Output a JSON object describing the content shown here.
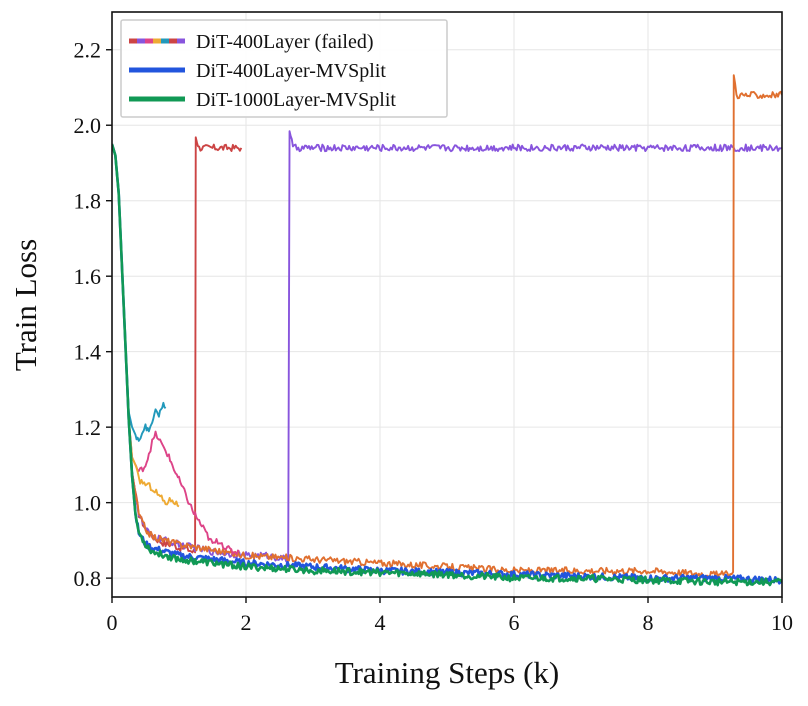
{
  "chart_data": {
    "type": "line",
    "title": "",
    "xlabel": "Training Steps (k)",
    "ylabel": "Train Loss",
    "xlim": [
      0,
      10
    ],
    "ylim": [
      0.75,
      2.3
    ],
    "xticks": [
      0,
      2,
      4,
      6,
      8,
      10
    ],
    "xtick_labels": [
      "0",
      "2",
      "4",
      "6",
      "8",
      "10"
    ],
    "yticks": [
      0.8,
      1.0,
      1.2,
      1.4,
      1.6,
      1.8,
      2.0,
      2.2
    ],
    "ytick_labels": [
      "0.8",
      "1.0",
      "1.2",
      "1.4",
      "1.6",
      "1.8",
      "2.0",
      "2.2"
    ],
    "grid": true,
    "legend_position": "top-left",
    "legend": [
      {
        "label": "DiT-400Layer (failed)",
        "colors": [
          "#cc4444",
          "#8855dd",
          "#dd4488",
          "#eeaa33",
          "#2299bb"
        ],
        "style": "multicolor-dashed"
      },
      {
        "label": "DiT-400Layer-MVSplit",
        "colors": [
          "#2255dd"
        ],
        "style": "solid"
      },
      {
        "label": "DiT-1000Layer-MVSplit",
        "colors": [
          "#119955"
        ],
        "style": "solid"
      }
    ],
    "series": [
      {
        "color": "#cc4444",
        "x": [
          0,
          0.05,
          0.1,
          0.15,
          0.2,
          0.25,
          0.3,
          0.4,
          0.5,
          0.6,
          0.7,
          0.8,
          0.9,
          1.0,
          1.1,
          1.2,
          1.24,
          1.25,
          1.3,
          1.5,
          1.7,
          1.93
        ],
        "y": [
          1.95,
          1.92,
          1.82,
          1.62,
          1.42,
          1.22,
          1.08,
          0.97,
          0.93,
          0.91,
          0.9,
          0.89,
          0.89,
          0.88,
          0.88,
          0.87,
          0.87,
          1.97,
          1.94,
          1.94,
          1.94,
          1.94
        ]
      },
      {
        "color": "#8855dd",
        "x": [
          0,
          0.05,
          0.1,
          0.15,
          0.2,
          0.25,
          0.3,
          0.4,
          0.5,
          0.6,
          0.8,
          1.0,
          1.5,
          2.0,
          2.3,
          2.6,
          2.63,
          2.65,
          2.7,
          4.0,
          6.0,
          8.0,
          10.0
        ],
        "y": [
          1.95,
          1.92,
          1.82,
          1.62,
          1.42,
          1.22,
          1.08,
          0.97,
          0.93,
          0.91,
          0.9,
          0.89,
          0.87,
          0.86,
          0.86,
          0.85,
          0.85,
          1.99,
          1.94,
          1.94,
          1.94,
          1.94,
          1.94
        ]
      },
      {
        "color": "#e07030",
        "x": [
          0,
          0.05,
          0.1,
          0.15,
          0.2,
          0.25,
          0.3,
          0.4,
          0.5,
          0.6,
          0.8,
          1.0,
          2.0,
          3.0,
          4.0,
          5.0,
          6.0,
          7.0,
          8.0,
          9.0,
          9.27,
          9.28,
          9.32,
          9.5,
          10.0
        ],
        "y": [
          1.95,
          1.92,
          1.82,
          1.62,
          1.42,
          1.22,
          1.08,
          0.97,
          0.93,
          0.91,
          0.9,
          0.89,
          0.86,
          0.85,
          0.84,
          0.83,
          0.82,
          0.82,
          0.82,
          0.81,
          0.81,
          2.14,
          2.08,
          2.08,
          2.08
        ]
      },
      {
        "color": "#dd4488",
        "x": [
          0,
          0.05,
          0.1,
          0.15,
          0.2,
          0.25,
          0.3,
          0.4,
          0.5,
          0.55,
          0.6,
          0.65,
          0.7,
          0.75,
          0.8,
          0.85,
          0.9,
          0.95,
          1.0,
          1.1,
          1.2,
          1.3,
          1.4,
          1.5,
          1.6,
          1.7,
          1.8,
          1.9
        ],
        "y": [
          1.95,
          1.92,
          1.82,
          1.62,
          1.42,
          1.22,
          1.12,
          1.08,
          1.1,
          1.13,
          1.16,
          1.18,
          1.17,
          1.15,
          1.14,
          1.12,
          1.1,
          1.08,
          1.06,
          1.02,
          0.98,
          0.95,
          0.92,
          0.89,
          0.9,
          0.88,
          0.87,
          0.87
        ]
      },
      {
        "color": "#eeaa33",
        "x": [
          0,
          0.05,
          0.1,
          0.15,
          0.2,
          0.25,
          0.3,
          0.35,
          0.4,
          0.5,
          0.6,
          0.7,
          0.8,
          0.9,
          1.0
        ],
        "y": [
          1.95,
          1.92,
          1.82,
          1.62,
          1.42,
          1.22,
          1.12,
          1.1,
          1.06,
          1.05,
          1.04,
          1.02,
          1.0,
          1.01,
          0.99
        ]
      },
      {
        "color": "#2299bb",
        "x": [
          0,
          0.05,
          0.1,
          0.15,
          0.2,
          0.25,
          0.3,
          0.35,
          0.4,
          0.45,
          0.5,
          0.55,
          0.6,
          0.65,
          0.7,
          0.75,
          0.8
        ],
        "y": [
          1.95,
          1.92,
          1.82,
          1.62,
          1.42,
          1.24,
          1.2,
          1.18,
          1.17,
          1.18,
          1.2,
          1.19,
          1.22,
          1.24,
          1.23,
          1.26,
          1.25
        ]
      },
      {
        "name": "DiT-400Layer-MVSplit",
        "color": "#2255dd",
        "x": [
          0,
          0.05,
          0.1,
          0.15,
          0.2,
          0.25,
          0.3,
          0.35,
          0.4,
          0.5,
          0.6,
          0.8,
          1.0,
          1.5,
          2.0,
          3.0,
          4.0,
          5.0,
          6.0,
          7.0,
          8.0,
          9.0,
          10.0
        ],
        "y": [
          1.95,
          1.92,
          1.82,
          1.62,
          1.42,
          1.22,
          1.07,
          0.97,
          0.92,
          0.89,
          0.88,
          0.87,
          0.86,
          0.85,
          0.84,
          0.83,
          0.82,
          0.815,
          0.81,
          0.805,
          0.8,
          0.8,
          0.795
        ]
      },
      {
        "name": "DiT-1000Layer-MVSplit",
        "color": "#119955",
        "x": [
          0,
          0.05,
          0.1,
          0.15,
          0.2,
          0.25,
          0.3,
          0.35,
          0.4,
          0.5,
          0.6,
          0.8,
          1.0,
          1.5,
          2.0,
          3.0,
          4.0,
          5.0,
          6.0,
          7.0,
          8.0,
          9.0,
          10.0
        ],
        "y": [
          1.95,
          1.92,
          1.82,
          1.62,
          1.42,
          1.22,
          1.07,
          0.97,
          0.92,
          0.89,
          0.87,
          0.86,
          0.85,
          0.84,
          0.83,
          0.82,
          0.815,
          0.81,
          0.8,
          0.8,
          0.795,
          0.79,
          0.79
        ]
      }
    ]
  }
}
